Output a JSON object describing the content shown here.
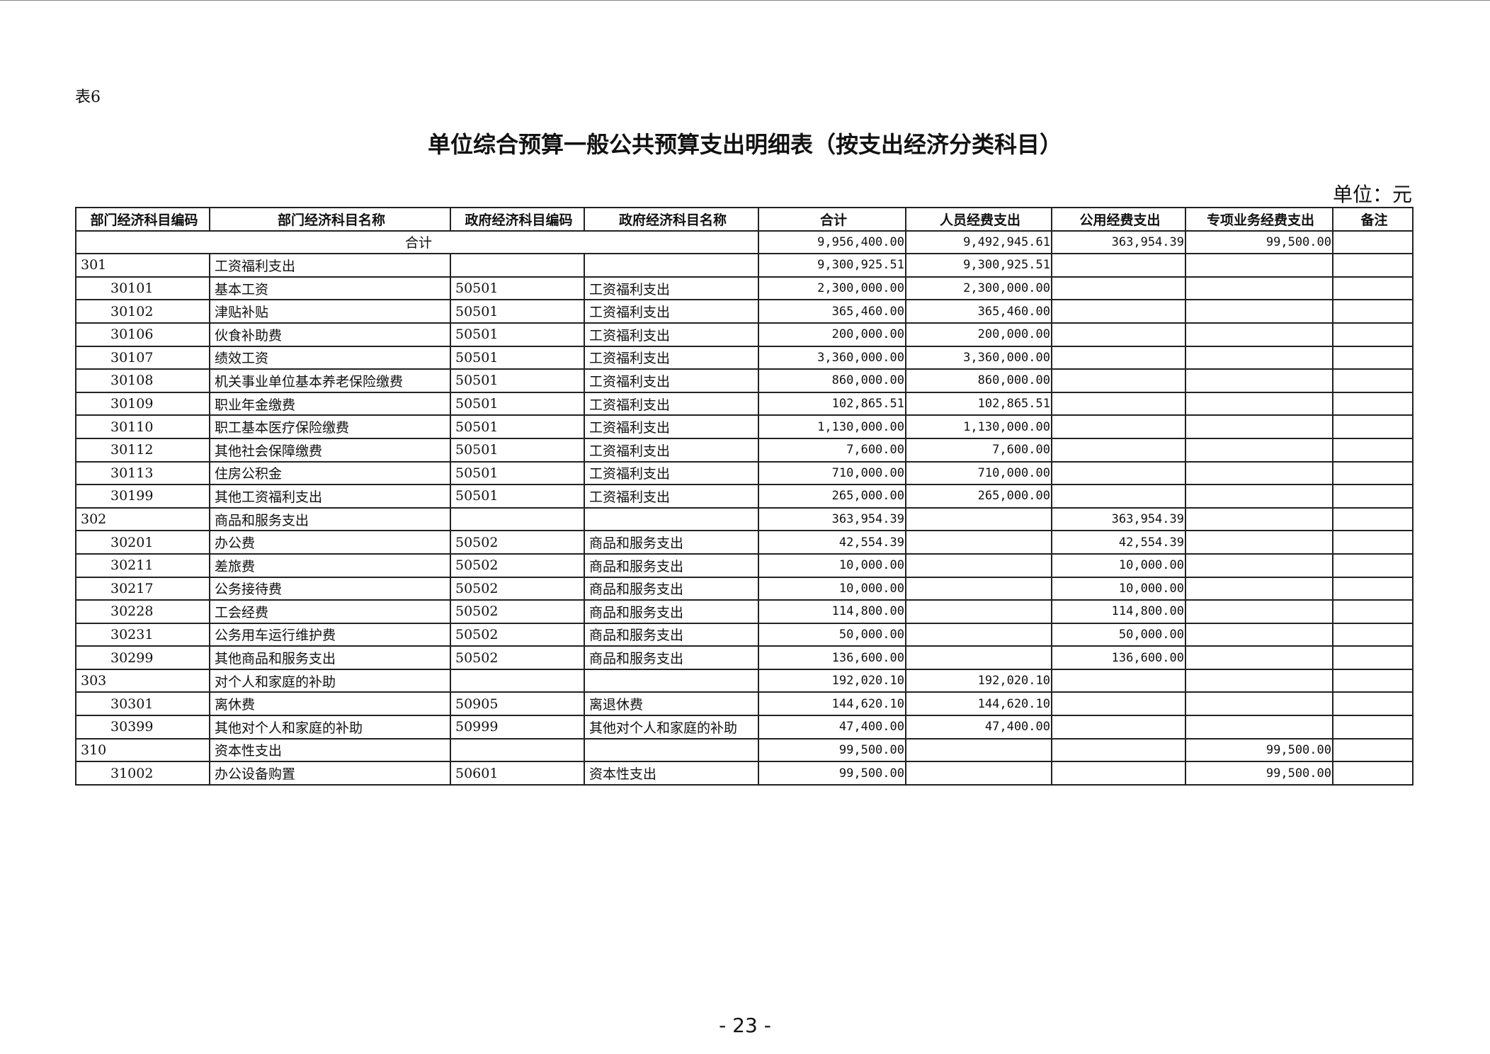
{
  "table_no": "表6",
  "title": "单位综合预算一般公共预算支出明细表（按支出经济分类科目）",
  "unit": "单位：元",
  "headers": [
    "部门经济科目编码",
    "部门经济科目名称",
    "政府经济科目编码",
    "政府经济科目名称",
    "合计",
    "人员经费支出",
    "公用经费支出",
    "专项业务经费支出",
    "备注"
  ],
  "total_row": {
    "label": "合计",
    "total": "9,956,400.00",
    "personnel": "9,492,945.61",
    "public": "363,954.39",
    "special": "99,500.00",
    "note": ""
  },
  "rows": [
    {
      "level": 1,
      "dept_code": "301",
      "dept_name": "工资福利支出",
      "gov_code": "",
      "gov_name": "",
      "total": "9,300,925.51",
      "personnel": "9,300,925.51",
      "public": "",
      "special": "",
      "note": ""
    },
    {
      "level": 2,
      "dept_code": "30101",
      "dept_name": "基本工资",
      "gov_code": "50501",
      "gov_name": "工资福利支出",
      "total": "2,300,000.00",
      "personnel": "2,300,000.00",
      "public": "",
      "special": "",
      "note": ""
    },
    {
      "level": 2,
      "dept_code": "30102",
      "dept_name": "津贴补贴",
      "gov_code": "50501",
      "gov_name": "工资福利支出",
      "total": "365,460.00",
      "personnel": "365,460.00",
      "public": "",
      "special": "",
      "note": ""
    },
    {
      "level": 2,
      "dept_code": "30106",
      "dept_name": "伙食补助费",
      "gov_code": "50501",
      "gov_name": "工资福利支出",
      "total": "200,000.00",
      "personnel": "200,000.00",
      "public": "",
      "special": "",
      "note": ""
    },
    {
      "level": 2,
      "dept_code": "30107",
      "dept_name": "绩效工资",
      "gov_code": "50501",
      "gov_name": "工资福利支出",
      "total": "3,360,000.00",
      "personnel": "3,360,000.00",
      "public": "",
      "special": "",
      "note": ""
    },
    {
      "level": 2,
      "dept_code": "30108",
      "dept_name": "机关事业单位基本养老保险缴费",
      "gov_code": "50501",
      "gov_name": "工资福利支出",
      "total": "860,000.00",
      "personnel": "860,000.00",
      "public": "",
      "special": "",
      "note": ""
    },
    {
      "level": 2,
      "dept_code": "30109",
      "dept_name": "职业年金缴费",
      "gov_code": "50501",
      "gov_name": "工资福利支出",
      "total": "102,865.51",
      "personnel": "102,865.51",
      "public": "",
      "special": "",
      "note": ""
    },
    {
      "level": 2,
      "dept_code": "30110",
      "dept_name": "职工基本医疗保险缴费",
      "gov_code": "50501",
      "gov_name": "工资福利支出",
      "total": "1,130,000.00",
      "personnel": "1,130,000.00",
      "public": "",
      "special": "",
      "note": ""
    },
    {
      "level": 2,
      "dept_code": "30112",
      "dept_name": "其他社会保障缴费",
      "gov_code": "50501",
      "gov_name": "工资福利支出",
      "total": "7,600.00",
      "personnel": "7,600.00",
      "public": "",
      "special": "",
      "note": ""
    },
    {
      "level": 2,
      "dept_code": "30113",
      "dept_name": "住房公积金",
      "gov_code": "50501",
      "gov_name": "工资福利支出",
      "total": "710,000.00",
      "personnel": "710,000.00",
      "public": "",
      "special": "",
      "note": ""
    },
    {
      "level": 2,
      "dept_code": "30199",
      "dept_name": "其他工资福利支出",
      "gov_code": "50501",
      "gov_name": "工资福利支出",
      "total": "265,000.00",
      "personnel": "265,000.00",
      "public": "",
      "special": "",
      "note": ""
    },
    {
      "level": 1,
      "dept_code": "302",
      "dept_name": "商品和服务支出",
      "gov_code": "",
      "gov_name": "",
      "total": "363,954.39",
      "personnel": "",
      "public": "363,954.39",
      "special": "",
      "note": ""
    },
    {
      "level": 2,
      "dept_code": "30201",
      "dept_name": "办公费",
      "gov_code": "50502",
      "gov_name": "商品和服务支出",
      "total": "42,554.39",
      "personnel": "",
      "public": "42,554.39",
      "special": "",
      "note": ""
    },
    {
      "level": 2,
      "dept_code": "30211",
      "dept_name": "差旅费",
      "gov_code": "50502",
      "gov_name": "商品和服务支出",
      "total": "10,000.00",
      "personnel": "",
      "public": "10,000.00",
      "special": "",
      "note": ""
    },
    {
      "level": 2,
      "dept_code": "30217",
      "dept_name": "公务接待费",
      "gov_code": "50502",
      "gov_name": "商品和服务支出",
      "total": "10,000.00",
      "personnel": "",
      "public": "10,000.00",
      "special": "",
      "note": ""
    },
    {
      "level": 2,
      "dept_code": "30228",
      "dept_name": "工会经费",
      "gov_code": "50502",
      "gov_name": "商品和服务支出",
      "total": "114,800.00",
      "personnel": "",
      "public": "114,800.00",
      "special": "",
      "note": ""
    },
    {
      "level": 2,
      "dept_code": "30231",
      "dept_name": "公务用车运行维护费",
      "gov_code": "50502",
      "gov_name": "商品和服务支出",
      "total": "50,000.00",
      "personnel": "",
      "public": "50,000.00",
      "special": "",
      "note": ""
    },
    {
      "level": 2,
      "dept_code": "30299",
      "dept_name": "其他商品和服务支出",
      "gov_code": "50502",
      "gov_name": "商品和服务支出",
      "total": "136,600.00",
      "personnel": "",
      "public": "136,600.00",
      "special": "",
      "note": ""
    },
    {
      "level": 1,
      "dept_code": "303",
      "dept_name": "对个人和家庭的补助",
      "gov_code": "",
      "gov_name": "",
      "total": "192,020.10",
      "personnel": "192,020.10",
      "public": "",
      "special": "",
      "note": ""
    },
    {
      "level": 2,
      "dept_code": "30301",
      "dept_name": "离休费",
      "gov_code": "50905",
      "gov_name": "离退休费",
      "total": "144,620.10",
      "personnel": "144,620.10",
      "public": "",
      "special": "",
      "note": ""
    },
    {
      "level": 2,
      "dept_code": "30399",
      "dept_name": "其他对个人和家庭的补助",
      "gov_code": "50999",
      "gov_name": "其他对个人和家庭的补助",
      "total": "47,400.00",
      "personnel": "47,400.00",
      "public": "",
      "special": "",
      "note": ""
    },
    {
      "level": 1,
      "dept_code": "310",
      "dept_name": "资本性支出",
      "gov_code": "",
      "gov_name": "",
      "total": "99,500.00",
      "personnel": "",
      "public": "",
      "special": "99,500.00",
      "note": ""
    },
    {
      "level": 2,
      "dept_code": "31002",
      "dept_name": "办公设备购置",
      "gov_code": "50601",
      "gov_name": "资本性支出",
      "total": "99,500.00",
      "personnel": "",
      "public": "",
      "special": "99,500.00",
      "note": ""
    }
  ],
  "page_number": "- 23 -"
}
